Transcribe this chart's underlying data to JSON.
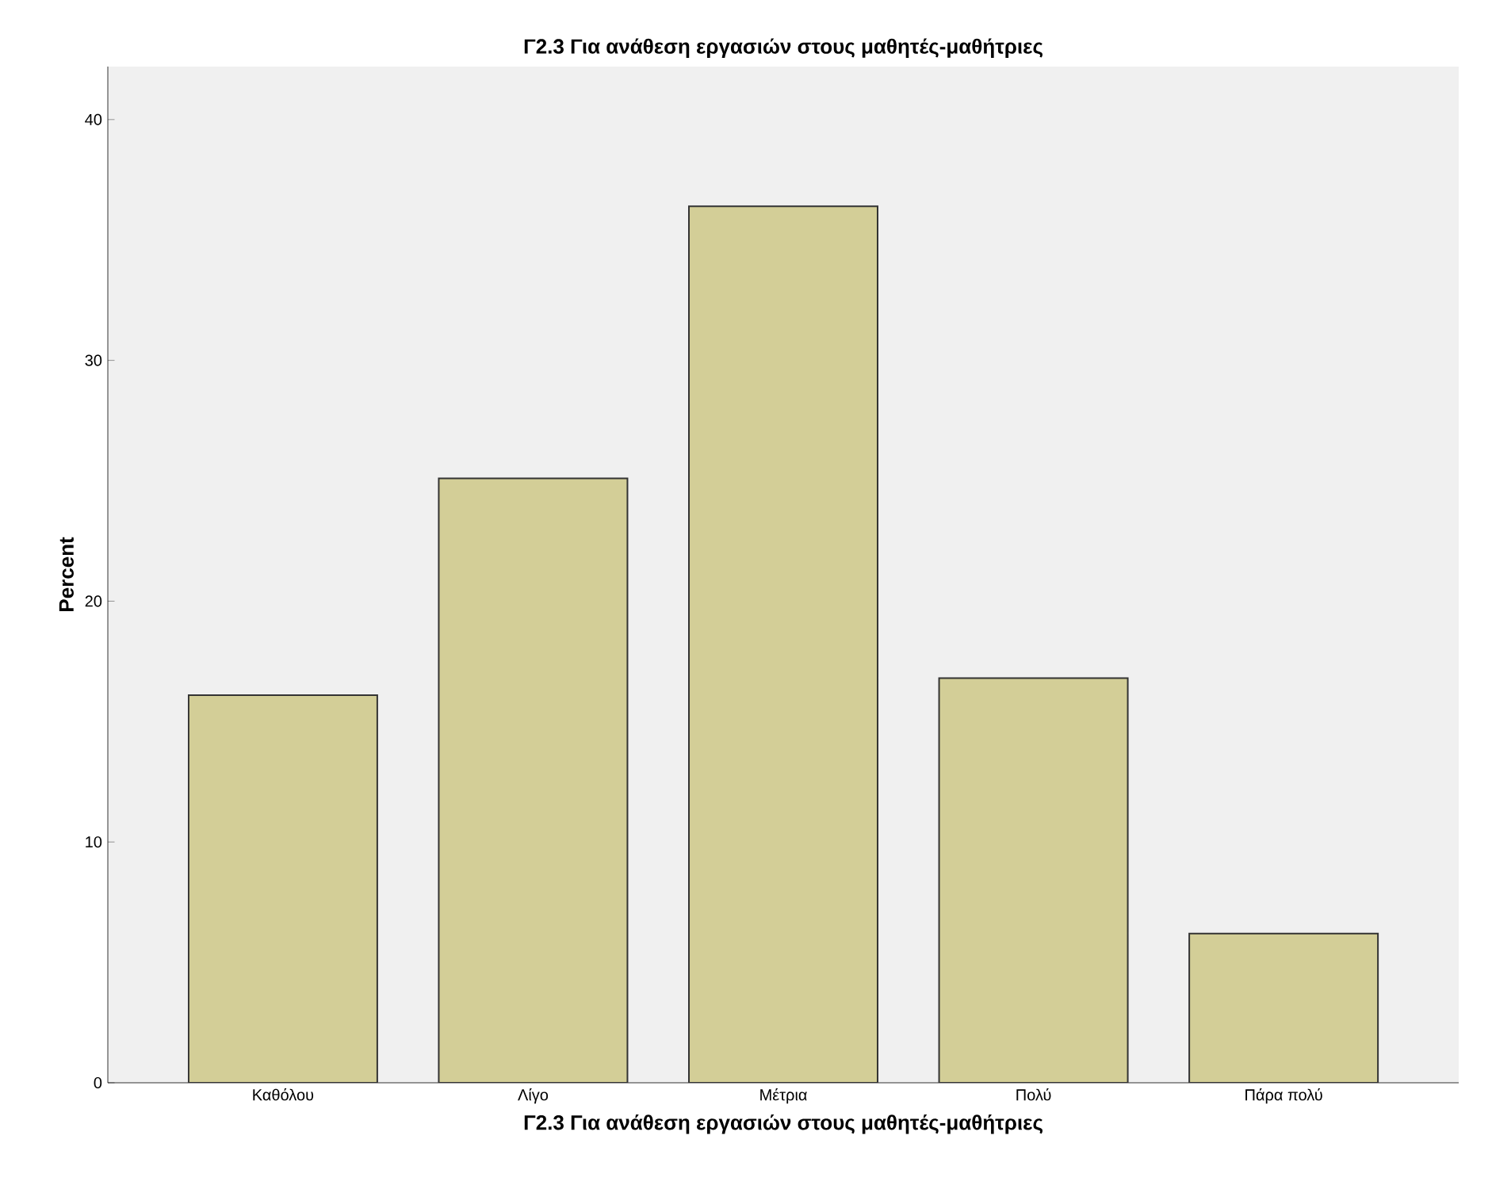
{
  "chart_data": {
    "type": "bar",
    "title": "Γ2.3 Για ανάθεση εργασιών στους μαθητές-μαθήτριες",
    "xlabel": "Γ2.3 Για ανάθεση εργασιών στους μαθητές-μαθήτριες",
    "ylabel": "Percent",
    "categories": [
      "Καθόλου",
      "Λίγο",
      "Μέτρια",
      "Πολύ",
      "Πάρα πολύ"
    ],
    "values": [
      16.1,
      25.1,
      36.4,
      16.8,
      6.2
    ],
    "color": "#d3ce97",
    "ylim": [
      0,
      42.2
    ],
    "yticks": [
      0,
      10,
      20,
      30,
      40
    ],
    "grid": false
  }
}
